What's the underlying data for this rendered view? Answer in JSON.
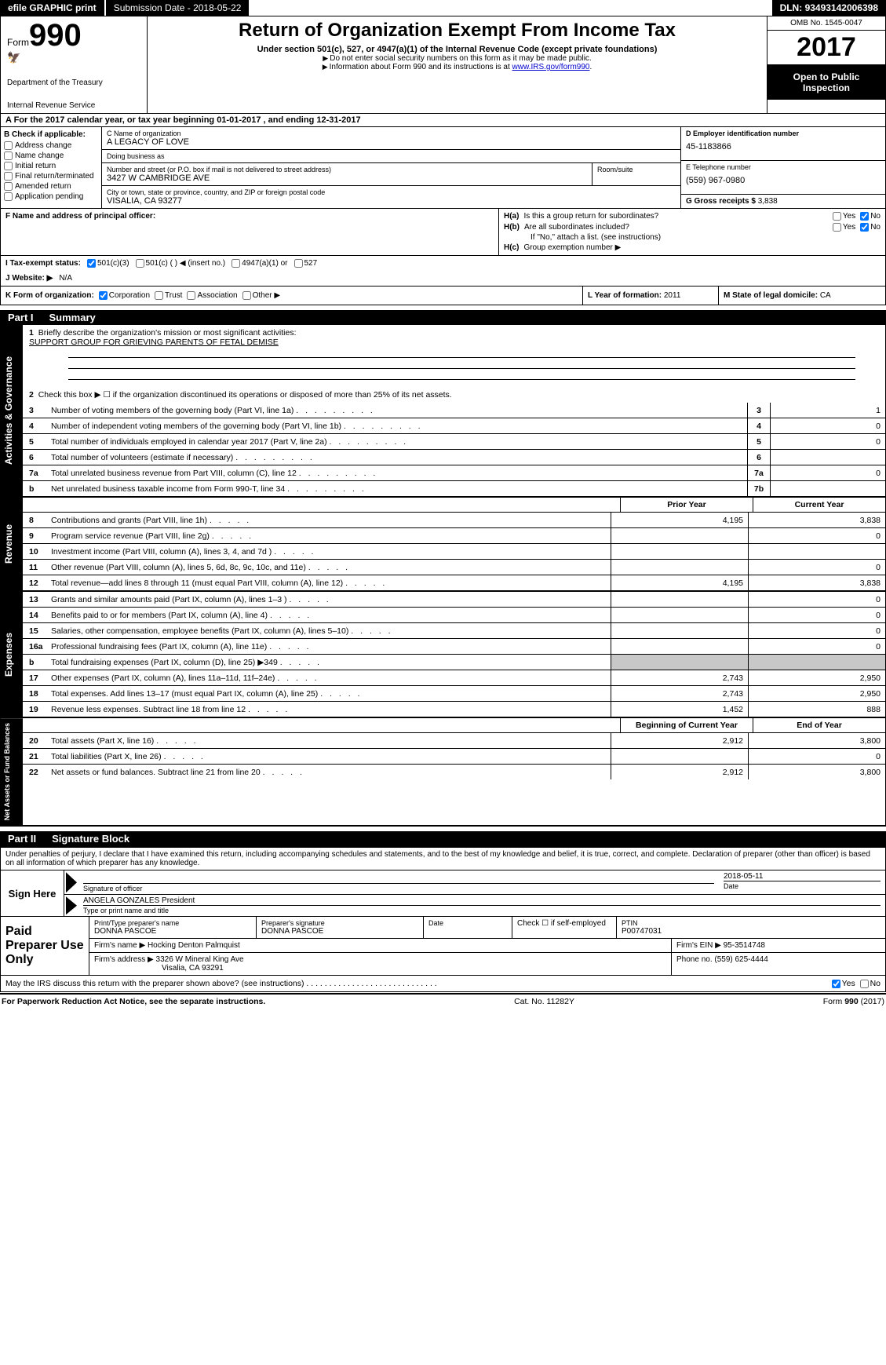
{
  "topbar": {
    "efile": "efile GRAPHIC print",
    "submission_label": "Submission Date - ",
    "submission_date": "2018-05-22",
    "dln_label": "DLN: ",
    "dln": "93493142006398"
  },
  "header": {
    "form_label": "Form",
    "form_number": "990",
    "dept1": "Department of the Treasury",
    "dept2": "Internal Revenue Service",
    "title": "Return of Organization Exempt From Income Tax",
    "subtitle": "Under section 501(c), 527, or 4947(a)(1) of the Internal Revenue Code (except private foundations)",
    "note1": "Do not enter social security numbers on this form as it may be made public.",
    "note2": "Information about Form 990 and its instructions is at ",
    "link": "www.IRS.gov/form990",
    "omb": "OMB No. 1545-0047",
    "year": "2017",
    "inspection": "Open to Public Inspection"
  },
  "row_a": "A   For the 2017 calendar year, or tax year beginning 01-01-2017       , and ending 12-31-2017",
  "section_b": {
    "title": "B Check if applicable:",
    "options": [
      "Address change",
      "Name change",
      "Initial return",
      "Final return/terminated",
      "Amended return",
      "Application pending"
    ]
  },
  "section_c": {
    "name_label": "C Name of organization",
    "name": "A LEGACY OF LOVE",
    "dba_label": "Doing business as",
    "dba": "",
    "addr_label": "Number and street (or P.O. box if mail is not delivered to street address)",
    "room_label": "Room/suite",
    "addr": "3427 W CAMBRIDGE AVE",
    "city_label": "City or town, state or province, country, and ZIP or foreign postal code",
    "city": "VISALIA, CA  93277"
  },
  "section_d": {
    "ein_label": "D Employer identification number",
    "ein": "45-1183866",
    "tel_label": "E Telephone number",
    "tel": "(559) 967-0980",
    "gross_label": "G Gross receipts $ ",
    "gross": "3,838"
  },
  "section_f": {
    "label": "F Name and address of principal officer:",
    "value": ""
  },
  "section_h": {
    "ha_label": "H(a)",
    "ha_text": "Is this a group return for subordinates?",
    "hb_label": "H(b)",
    "hb_text": "Are all subordinates included?",
    "hb_note": "If \"No,\" attach a list. (see instructions)",
    "hc_label": "H(c)",
    "hc_text": "Group exemption number ▶",
    "yes": "Yes",
    "no": "No",
    "ha_no_checked": true,
    "hb_no_checked": true
  },
  "row_i": {
    "label": "I    Tax-exempt status:",
    "opts": [
      "501(c)(3)",
      "501(c) (  ) ◀ (insert no.)",
      "4947(a)(1) or",
      "527"
    ],
    "checked_index": 0
  },
  "row_j": {
    "label": "J   Website: ▶",
    "value": "N/A"
  },
  "row_k": {
    "label": "K Form of organization:",
    "opts": [
      "Corporation",
      "Trust",
      "Association",
      "Other ▶"
    ],
    "checked_index": 0,
    "l_label": "L Year of formation: ",
    "l_value": "2011",
    "m_label": "M State of legal domicile: ",
    "m_value": "CA"
  },
  "part1": {
    "title": "Part I",
    "subtitle": "Summary",
    "line1_label": "1",
    "line1_text": "Briefly describe the organization's mission or most significant activities:",
    "line1_value": "SUPPORT GROUP FOR GRIEVING PARENTS OF FETAL DEMISE",
    "line2_label": "2",
    "line2_text": "Check this box ▶ ☐  if the organization discontinued its operations or disposed of more than 25% of its net assets.",
    "gov_rows": [
      {
        "n": "3",
        "t": "Number of voting members of the governing body (Part VI, line 1a)",
        "box": "3",
        "v": "1"
      },
      {
        "n": "4",
        "t": "Number of independent voting members of the governing body (Part VI, line 1b)",
        "box": "4",
        "v": "0"
      },
      {
        "n": "5",
        "t": "Total number of individuals employed in calendar year 2017 (Part V, line 2a)",
        "box": "5",
        "v": "0"
      },
      {
        "n": "6",
        "t": "Total number of volunteers (estimate if necessary)",
        "box": "6",
        "v": ""
      },
      {
        "n": "7a",
        "t": "Total unrelated business revenue from Part VIII, column (C), line 12",
        "box": "7a",
        "v": "0"
      },
      {
        "n": "b",
        "t": "Net unrelated business taxable income from Form 990-T, line 34",
        "box": "7b",
        "v": ""
      }
    ],
    "prior_year": "Prior Year",
    "current_year": "Current Year",
    "revenue_rows": [
      {
        "n": "8",
        "t": "Contributions and grants (Part VIII, line 1h)",
        "p": "4,195",
        "c": "3,838"
      },
      {
        "n": "9",
        "t": "Program service revenue (Part VIII, line 2g)",
        "p": "",
        "c": "0"
      },
      {
        "n": "10",
        "t": "Investment income (Part VIII, column (A), lines 3, 4, and 7d )",
        "p": "",
        "c": ""
      },
      {
        "n": "11",
        "t": "Other revenue (Part VIII, column (A), lines 5, 6d, 8c, 9c, 10c, and 11e)",
        "p": "",
        "c": "0"
      },
      {
        "n": "12",
        "t": "Total revenue—add lines 8 through 11 (must equal Part VIII, column (A), line 12)",
        "p": "4,195",
        "c": "3,838"
      }
    ],
    "expense_rows": [
      {
        "n": "13",
        "t": "Grants and similar amounts paid (Part IX, column (A), lines 1–3 )",
        "p": "",
        "c": "0"
      },
      {
        "n": "14",
        "t": "Benefits paid to or for members (Part IX, column (A), line 4)",
        "p": "",
        "c": "0"
      },
      {
        "n": "15",
        "t": "Salaries, other compensation, employee benefits (Part IX, column (A), lines 5–10)",
        "p": "",
        "c": "0"
      },
      {
        "n": "16a",
        "t": "Professional fundraising fees (Part IX, column (A), line 11e)",
        "p": "",
        "c": "0"
      },
      {
        "n": "b",
        "t": "Total fundraising expenses (Part IX, column (D), line 25) ▶349",
        "p": "shaded",
        "c": "shaded"
      },
      {
        "n": "17",
        "t": "Other expenses (Part IX, column (A), lines 11a–11d, 11f–24e)",
        "p": "2,743",
        "c": "2,950"
      },
      {
        "n": "18",
        "t": "Total expenses. Add lines 13–17 (must equal Part IX, column (A), line 25)",
        "p": "2,743",
        "c": "2,950"
      },
      {
        "n": "19",
        "t": "Revenue less expenses. Subtract line 18 from line 12",
        "p": "1,452",
        "c": "888"
      }
    ],
    "begin_year": "Beginning of Current Year",
    "end_year": "End of Year",
    "netasset_rows": [
      {
        "n": "20",
        "t": "Total assets (Part X, line 16)",
        "p": "2,912",
        "c": "3,800"
      },
      {
        "n": "21",
        "t": "Total liabilities (Part X, line 26)",
        "p": "",
        "c": "0"
      },
      {
        "n": "22",
        "t": "Net assets or fund balances. Subtract line 21 from line 20",
        "p": "2,912",
        "c": "3,800"
      }
    ]
  },
  "part2": {
    "title": "Part II",
    "subtitle": "Signature Block",
    "declaration": "Under penalties of perjury, I declare that I have examined this return, including accompanying schedules and statements, and to the best of my knowledge and belief, it is true, correct, and complete. Declaration of preparer (other than officer) is based on all information of which preparer has any knowledge.",
    "sign_here": "Sign Here",
    "sig_officer": "Signature of officer",
    "sig_date_label": "Date",
    "sig_date": "2018-05-11",
    "officer_name": "ANGELA GONZALES  President",
    "type_name": "Type or print name and title",
    "paid_title": "Paid Preparer Use Only",
    "prep_name_label": "Print/Type preparer's name",
    "prep_name": "DONNA PASCOE",
    "prep_sig_label": "Preparer's signature",
    "prep_sig": "DONNA PASCOE",
    "date_label": "Date",
    "check_self": "Check ☐ if self-employed",
    "ptin_label": "PTIN",
    "ptin": "P00747031",
    "firm_name_label": "Firm's name    ▶ ",
    "firm_name": "Hocking Denton Palmquist",
    "firm_ein_label": "Firm's EIN ▶ ",
    "firm_ein": "95-3514748",
    "firm_addr_label": "Firm's address ▶ ",
    "firm_addr": "3326 W Mineral King Ave",
    "firm_city": "Visalia, CA  93291",
    "phone_label": "Phone no. ",
    "phone": "(559) 625-4444",
    "discuss": "May the IRS discuss this return with the preparer shown above? (see instructions)",
    "discuss_yes_checked": true
  },
  "footer": {
    "left": "For Paperwork Reduction Act Notice, see the separate instructions.",
    "mid": "Cat. No. 11282Y",
    "right": "Form 990 (2017)"
  },
  "tabs": {
    "activities": "Activities & Governance",
    "revenue": "Revenue",
    "expenses": "Expenses",
    "netassets": "Net Assets or Fund Balances"
  }
}
